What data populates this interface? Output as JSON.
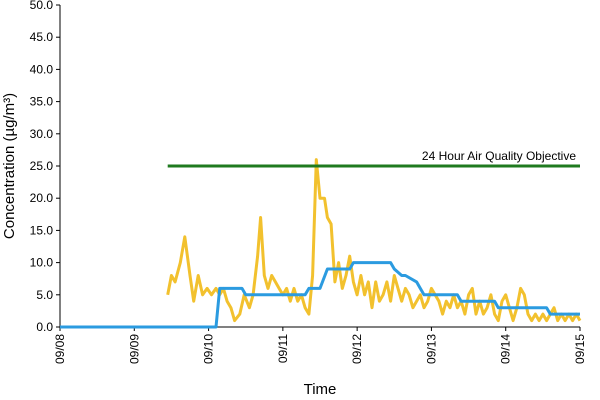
{
  "chart_data": {
    "type": "line",
    "xlabel": "Time",
    "ylabel": "Concentration (µg/m³)",
    "annotation": "24 Hour Air Quality Objective",
    "xlim": [
      0,
      7
    ],
    "xticks": [
      {
        "value": 0,
        "label": "09/08"
      },
      {
        "value": 1,
        "label": "09/09"
      },
      {
        "value": 2,
        "label": "09/10"
      },
      {
        "value": 3,
        "label": "09/11"
      },
      {
        "value": 4,
        "label": "09/12"
      },
      {
        "value": 5,
        "label": "09/13"
      },
      {
        "value": 6,
        "label": "09/14"
      },
      {
        "value": 7,
        "label": "09/15"
      }
    ],
    "ylim": [
      0,
      50
    ],
    "yticks": [
      {
        "value": 0,
        "label": "0.0"
      },
      {
        "value": 5,
        "label": "5.0"
      },
      {
        "value": 10,
        "label": "10.0"
      },
      {
        "value": 15,
        "label": "15.0"
      },
      {
        "value": 20,
        "label": "20.0"
      },
      {
        "value": 25,
        "label": "25.0"
      },
      {
        "value": 30,
        "label": "30.0"
      },
      {
        "value": 35,
        "label": "35.0"
      },
      {
        "value": 40,
        "label": "40.0"
      },
      {
        "value": 45,
        "label": "45.0"
      },
      {
        "value": 50,
        "label": "50.0"
      }
    ],
    "grid": false,
    "series": [
      {
        "color": "#f2c12e",
        "x": [
          1.45,
          1.5,
          1.55,
          1.62,
          1.68,
          1.75,
          1.8,
          1.86,
          1.92,
          1.98,
          2.04,
          2.1,
          2.15,
          2.2,
          2.25,
          2.3,
          2.35,
          2.42,
          2.48,
          2.55,
          2.6,
          2.66,
          2.7,
          2.75,
          2.8,
          2.85,
          2.9,
          2.95,
          3.0,
          3.05,
          3.1,
          3.15,
          3.2,
          3.25,
          3.3,
          3.35,
          3.4,
          3.45,
          3.5,
          3.56,
          3.6,
          3.65,
          3.7,
          3.75,
          3.8,
          3.85,
          3.9,
          3.95,
          4.0,
          4.05,
          4.1,
          4.15,
          4.2,
          4.25,
          4.3,
          4.35,
          4.4,
          4.45,
          4.5,
          4.55,
          4.6,
          4.65,
          4.7,
          4.75,
          4.8,
          4.85,
          4.9,
          4.95,
          5.0,
          5.05,
          5.1,
          5.15,
          5.2,
          5.25,
          5.3,
          5.35,
          5.4,
          5.45,
          5.5,
          5.55,
          5.6,
          5.65,
          5.7,
          5.75,
          5.8,
          5.85,
          5.9,
          5.95,
          6.0,
          6.05,
          6.1,
          6.15,
          6.2,
          6.25,
          6.3,
          6.35,
          6.4,
          6.45,
          6.5,
          6.55,
          6.6,
          6.65,
          6.7,
          6.75,
          6.8,
          6.85,
          6.9,
          6.95,
          7.0
        ],
        "values": [
          5,
          8,
          7,
          10,
          14,
          8,
          4,
          8,
          5,
          6,
          5,
          6,
          5,
          6,
          4,
          3,
          1,
          2,
          5,
          3,
          5,
          11,
          17,
          8,
          6,
          8,
          7,
          6,
          5,
          6,
          4,
          6,
          4,
          5,
          3,
          2,
          8,
          26,
          20,
          20,
          17,
          16,
          7,
          10,
          6,
          8,
          11,
          7,
          5,
          8,
          5,
          7,
          3,
          7,
          4,
          5,
          7,
          4,
          8,
          6,
          4,
          6,
          5,
          3,
          4,
          5,
          3,
          4,
          6,
          5,
          4,
          2,
          4,
          3,
          5,
          3,
          4,
          2,
          5,
          6,
          2,
          4,
          2,
          3,
          5,
          2,
          1,
          4,
          5,
          3,
          1,
          3,
          6,
          5,
          2,
          1,
          2,
          1,
          2,
          1,
          2,
          3,
          1,
          2,
          1,
          2,
          1,
          2,
          1
        ]
      },
      {
        "color": "#2b9be0",
        "x": [
          0,
          2.1,
          2.15,
          2.45,
          2.5,
          3.3,
          3.35,
          3.5,
          3.6,
          3.9,
          3.95,
          4.45,
          4.5,
          4.6,
          4.65,
          4.8,
          4.85,
          4.9,
          5.35,
          5.4,
          5.85,
          5.9,
          6.55,
          6.6,
          7
        ],
        "values": [
          0,
          0,
          6,
          6,
          5,
          5,
          6,
          6,
          9,
          9,
          10,
          10,
          9,
          8,
          8,
          7,
          6,
          5,
          5,
          4,
          4,
          3,
          3,
          2,
          2
        ]
      },
      {
        "color": "#1f7a1f",
        "x": [
          1.45,
          7
        ],
        "values": [
          25,
          25
        ]
      }
    ]
  }
}
